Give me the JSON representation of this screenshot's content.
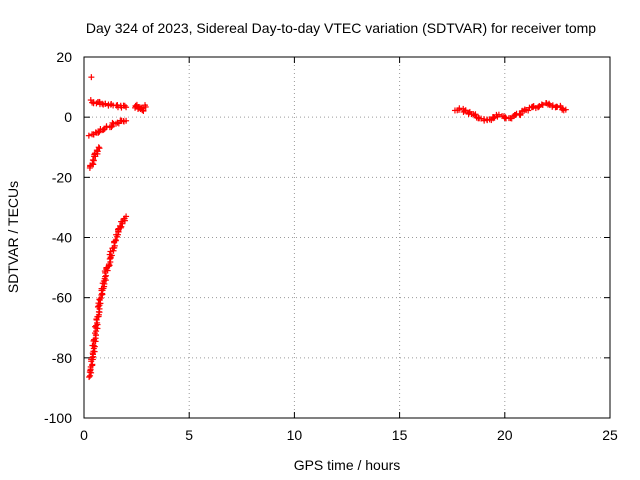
{
  "chart_data": {
    "type": "scatter",
    "title": "Day 324 of 2023, Sidereal Day-to-day VTEC variation (SDTVAR) for receiver tomp",
    "xlabel": "GPS time / hours",
    "ylabel": "SDTVAR / TECUs",
    "xlim": [
      0,
      25
    ],
    "ylim": [
      -100,
      20
    ],
    "xticks": [
      0,
      5,
      10,
      15,
      20,
      25
    ],
    "yticks": [
      -100,
      -80,
      -60,
      -40,
      -20,
      0,
      20
    ],
    "grid": true,
    "marker": "+",
    "series": [
      {
        "name": "SDTVAR",
        "color": "#ff0000",
        "segments": [
          {
            "x": [
              0.3,
              0.5,
              0.8,
              1.1,
              1.4,
              1.7,
              2.0
            ],
            "y": [
              5.5,
              5.0,
              4.6,
              4.2,
              3.9,
              3.6,
              3.3
            ]
          },
          {
            "x": [
              2.4,
              2.5,
              2.6,
              2.7,
              2.8,
              2.9
            ],
            "y": [
              3.0,
              4.0,
              2.5,
              3.5,
              2.0,
              4.0
            ]
          },
          {
            "x": [
              0.3,
              0.6,
              0.9,
              1.2,
              1.5,
              1.7,
              2.0
            ],
            "y": [
              -6.0,
              -5.0,
              -4.0,
              -3.0,
              -2.0,
              -1.5,
              -1.2
            ]
          },
          {
            "x": [
              0.3,
              0.4,
              0.5,
              0.6,
              0.7
            ],
            "y": [
              -17.0,
              -15.0,
              -13.5,
              -12.0,
              -10.0
            ]
          },
          {
            "x": [
              0.3,
              0.4,
              0.5,
              0.6,
              0.7,
              0.8,
              0.9,
              1.0,
              1.2,
              1.4,
              1.6,
              1.8,
              2.0
            ],
            "y": [
              -86.0,
              -80.0,
              -74.0,
              -69.0,
              -64.0,
              -60.0,
              -56.5,
              -53.0,
              -47.5,
              -43.0,
              -39.0,
              -35.5,
              -33.0
            ]
          },
          {
            "x": [
              17.7,
              17.9,
              18.1,
              18.3,
              18.5,
              18.7,
              18.9,
              19.1,
              19.3,
              19.5,
              19.7,
              19.9,
              20.1,
              20.3,
              20.5,
              20.7,
              20.9,
              21.1,
              21.3,
              21.5,
              21.7,
              21.9,
              22.1,
              22.3,
              22.5,
              22.7,
              22.9
            ],
            "y": [
              2.0,
              2.5,
              2.0,
              1.5,
              1.0,
              0.0,
              -0.5,
              -1.0,
              -0.5,
              0.0,
              0.5,
              0.0,
              -0.5,
              0.0,
              0.5,
              1.0,
              2.0,
              2.5,
              3.0,
              3.5,
              4.0,
              4.5,
              4.0,
              3.5,
              3.8,
              3.0,
              2.5
            ]
          }
        ],
        "outliers": [
          {
            "x": 0.35,
            "y": 13.3
          }
        ]
      }
    ]
  }
}
